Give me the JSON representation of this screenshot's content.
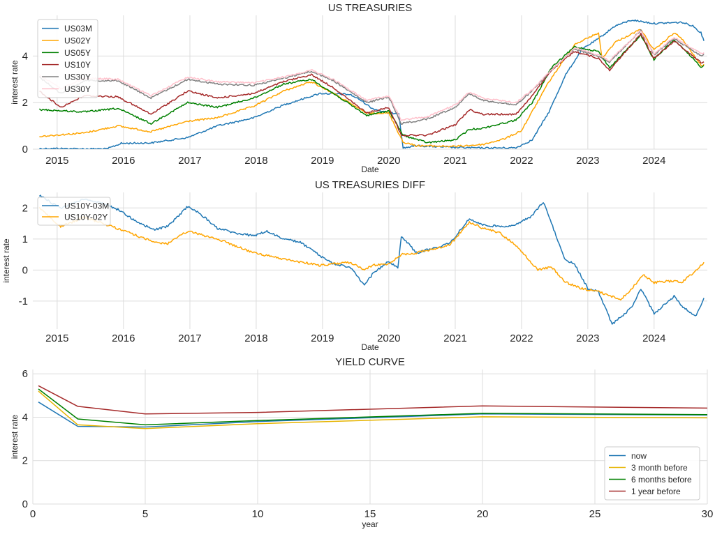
{
  "figure": {
    "background": "#ffffff"
  },
  "chart_data": [
    {
      "type": "line",
      "title": "US TREASURIES",
      "xlabel": "Date",
      "ylabel": "interest rate",
      "xlim": [
        "2014-08-20",
        "2024-10-20"
      ],
      "ylim": [
        0,
        5.75
      ],
      "xticks": [
        "2015",
        "2016",
        "2017",
        "2018",
        "2019",
        "2020",
        "2021",
        "2022",
        "2023",
        "2024"
      ],
      "yticks": [
        0,
        2,
        4
      ],
      "grid": true,
      "legend": "top-left",
      "series": [
        {
          "name": "US03M",
          "color": "#1f77b4",
          "x": [
            "2014-09-25",
            "2015-01-01",
            "2015-06-01",
            "2015-10-01",
            "2015-12-20",
            "2016-06-01",
            "2016-12-20",
            "2017-06-01",
            "2017-12-20",
            "2018-06-01",
            "2018-12-20",
            "2019-06-01",
            "2019-08-01",
            "2019-10-01",
            "2020-01-01",
            "2020-02-25",
            "2020-03-20",
            "2020-06-01",
            "2020-12-01",
            "2021-06-01",
            "2021-12-01",
            "2022-03-01",
            "2022-06-01",
            "2022-09-01",
            "2022-12-01",
            "2023-03-01",
            "2023-06-01",
            "2023-09-01",
            "2024-01-01",
            "2024-06-01",
            "2024-08-01",
            "2024-09-15",
            "2024-10-01"
          ],
          "y": [
            0.02,
            0.03,
            0.01,
            0.01,
            0.25,
            0.27,
            0.5,
            1.0,
            1.35,
            1.9,
            2.4,
            2.35,
            2.1,
            1.75,
            1.55,
            1.55,
            0.05,
            0.15,
            0.08,
            0.05,
            0.06,
            0.4,
            1.6,
            3.2,
            4.3,
            4.75,
            5.3,
            5.55,
            5.4,
            5.45,
            5.3,
            5.0,
            4.65
          ]
        },
        {
          "name": "US02Y",
          "color": "#ffa500",
          "x": [
            "2014-09-25",
            "2015-06-01",
            "2015-12-01",
            "2016-06-01",
            "2016-12-20",
            "2017-06-01",
            "2017-12-20",
            "2018-06-01",
            "2018-11-01",
            "2019-03-01",
            "2019-09-01",
            "2020-01-01",
            "2020-03-20",
            "2020-06-01",
            "2021-01-01",
            "2021-06-01",
            "2021-10-01",
            "2022-01-01",
            "2022-06-01",
            "2022-10-20",
            "2023-03-01",
            "2023-03-20",
            "2023-06-01",
            "2023-10-20",
            "2023-12-31",
            "2024-04-20",
            "2024-06-01",
            "2024-09-20",
            "2024-10-01"
          ],
          "y": [
            0.55,
            0.7,
            1.0,
            0.75,
            1.2,
            1.35,
            1.85,
            2.5,
            2.9,
            2.4,
            1.55,
            1.55,
            0.3,
            0.15,
            0.12,
            0.2,
            0.45,
            0.8,
            2.9,
            4.5,
            5.0,
            3.9,
            4.6,
            5.15,
            4.25,
            5.0,
            4.75,
            3.55,
            3.65
          ]
        },
        {
          "name": "US05Y",
          "color": "#008000",
          "x": [
            "2014-09-25",
            "2015-06-01",
            "2015-12-01",
            "2016-06-01",
            "2016-12-20",
            "2017-06-01",
            "2017-12-20",
            "2018-06-01",
            "2018-11-01",
            "2019-03-01",
            "2019-09-01",
            "2020-01-01",
            "2020-03-20",
            "2020-08-01",
            "2021-01-01",
            "2021-03-20",
            "2021-06-01",
            "2021-12-01",
            "2022-03-01",
            "2022-06-15",
            "2022-10-20",
            "2023-03-01",
            "2023-05-01",
            "2023-10-20",
            "2023-12-31",
            "2024-04-20",
            "2024-09-20",
            "2024-10-01"
          ],
          "y": [
            1.7,
            1.6,
            1.75,
            1.1,
            2.0,
            1.8,
            2.2,
            2.8,
            3.0,
            2.4,
            1.45,
            1.65,
            0.6,
            0.28,
            0.4,
            0.85,
            0.9,
            1.25,
            2.0,
            3.5,
            4.4,
            4.2,
            3.5,
            4.9,
            3.85,
            4.7,
            3.5,
            3.6
          ]
        },
        {
          "name": "US10Y",
          "color": "#a52a2a",
          "x": [
            "2014-09-25",
            "2015-01-20",
            "2015-06-01",
            "2015-12-01",
            "2016-06-01",
            "2016-12-20",
            "2017-06-01",
            "2017-12-20",
            "2018-06-01",
            "2018-11-01",
            "2019-03-01",
            "2019-09-01",
            "2020-01-01",
            "2020-03-10",
            "2020-08-01",
            "2021-01-01",
            "2021-03-20",
            "2021-06-01",
            "2021-12-01",
            "2022-03-01",
            "2022-06-15",
            "2022-10-20",
            "2023-03-01",
            "2023-05-01",
            "2023-10-20",
            "2023-12-31",
            "2024-04-20",
            "2024-09-20",
            "2024-10-01"
          ],
          "y": [
            2.5,
            1.8,
            2.3,
            2.25,
            1.5,
            2.5,
            2.2,
            2.4,
            2.9,
            3.2,
            2.65,
            1.55,
            1.8,
            0.6,
            0.6,
            1.05,
            1.7,
            1.5,
            1.5,
            2.3,
            3.4,
            4.2,
            3.9,
            3.4,
            4.95,
            3.9,
            4.65,
            3.7,
            3.75
          ]
        },
        {
          "name": "US30Y",
          "color": "#808080",
          "x": [
            "2014-09-25",
            "2015-01-20",
            "2015-06-01",
            "2015-12-01",
            "2016-06-01",
            "2016-12-20",
            "2017-06-01",
            "2017-12-20",
            "2018-06-01",
            "2018-11-01",
            "2019-03-01",
            "2019-09-01",
            "2020-01-01",
            "2020-03-10",
            "2020-08-01",
            "2021-01-01",
            "2021-03-20",
            "2021-06-01",
            "2021-12-01",
            "2022-03-01",
            "2022-06-15",
            "2022-10-20",
            "2023-03-01",
            "2023-05-01",
            "2023-10-20",
            "2023-12-31",
            "2024-04-20",
            "2024-09-20",
            "2024-10-01"
          ],
          "y": [
            3.1,
            2.4,
            2.95,
            2.95,
            2.2,
            3.0,
            2.8,
            2.75,
            3.05,
            3.35,
            2.95,
            2.0,
            2.25,
            1.1,
            1.3,
            1.8,
            2.4,
            2.1,
            1.9,
            2.5,
            3.4,
            4.3,
            4.0,
            3.75,
            5.1,
            4.05,
            4.75,
            4.0,
            4.1
          ]
        },
        {
          "name": "US30Y",
          "color": "#ffc0cb",
          "x": [
            "2014-09-25",
            "2015-01-20",
            "2015-06-01",
            "2015-12-01",
            "2016-06-01",
            "2016-12-20",
            "2017-06-01",
            "2017-12-20",
            "2018-06-01",
            "2018-11-01",
            "2019-03-01",
            "2019-09-01",
            "2020-01-01",
            "2020-03-10",
            "2020-08-01",
            "2021-01-01",
            "2021-03-20",
            "2021-06-01",
            "2021-12-01",
            "2022-03-01",
            "2022-06-15",
            "2022-10-20",
            "2023-03-01",
            "2023-05-01",
            "2023-10-20",
            "2023-12-31",
            "2024-04-20",
            "2024-09-20",
            "2024-10-01"
          ],
          "y": [
            3.2,
            2.6,
            3.05,
            3.0,
            2.3,
            3.1,
            2.9,
            2.85,
            3.1,
            3.4,
            3.0,
            2.1,
            2.3,
            1.25,
            1.4,
            1.9,
            2.45,
            2.2,
            2.0,
            2.55,
            3.4,
            4.35,
            4.05,
            3.8,
            5.1,
            4.1,
            4.8,
            4.1,
            4.15
          ]
        }
      ]
    },
    {
      "type": "line",
      "title": "US TREASURIES DIFF",
      "xlabel": "Date",
      "ylabel": "interest rate",
      "xlim": [
        "2014-08-20",
        "2024-10-20"
      ],
      "ylim": [
        -1.9,
        2.5
      ],
      "xticks": [
        "2015",
        "2016",
        "2017",
        "2018",
        "2019",
        "2020",
        "2021",
        "2022",
        "2023",
        "2024"
      ],
      "yticks": [
        -1,
        0,
        1,
        2
      ],
      "grid": true,
      "legend": "top-left",
      "series": [
        {
          "name": "US10Y-03M",
          "color": "#1f77b4",
          "x": [
            "2014-09-25",
            "2015-01-20",
            "2015-06-01",
            "2015-10-01",
            "2015-12-20",
            "2016-03-01",
            "2016-06-15",
            "2016-09-01",
            "2016-12-20",
            "2017-03-01",
            "2017-06-01",
            "2017-09-01",
            "2017-12-20",
            "2018-03-01",
            "2018-06-01",
            "2018-09-01",
            "2018-12-20",
            "2019-03-01",
            "2019-06-01",
            "2019-08-20",
            "2019-10-01",
            "2020-01-01",
            "2020-02-20",
            "2020-03-10",
            "2020-06-01",
            "2020-12-01",
            "2021-03-20",
            "2021-06-01",
            "2021-09-01",
            "2021-12-01",
            "2022-03-01",
            "2022-05-01",
            "2022-06-15",
            "2022-09-01",
            "2022-10-20",
            "2023-01-01",
            "2023-03-01",
            "2023-05-15",
            "2023-09-01",
            "2023-10-20",
            "2024-01-01",
            "2024-04-20",
            "2024-06-01",
            "2024-08-15",
            "2024-10-01"
          ],
          "y": [
            2.4,
            2.0,
            2.3,
            2.1,
            1.9,
            1.6,
            1.3,
            1.4,
            2.05,
            1.8,
            1.35,
            1.2,
            1.1,
            1.25,
            1.0,
            0.9,
            0.45,
            0.2,
            0.1,
            -0.5,
            -0.15,
            0.3,
            0.05,
            1.1,
            0.55,
            0.85,
            1.65,
            1.45,
            1.4,
            1.45,
            1.75,
            2.2,
            1.5,
            0.3,
            0.2,
            -0.6,
            -0.7,
            -1.75,
            -1.2,
            -0.6,
            -1.4,
            -0.85,
            -1.15,
            -1.5,
            -0.9
          ]
        },
        {
          "name": "US10Y-02Y",
          "color": "#ffa500",
          "x": [
            "2014-09-25",
            "2015-01-20",
            "2015-06-01",
            "2015-12-20",
            "2016-06-15",
            "2016-09-01",
            "2016-12-20",
            "2017-06-01",
            "2017-12-20",
            "2018-06-01",
            "2018-12-20",
            "2019-03-01",
            "2019-06-01",
            "2019-08-20",
            "2019-10-01",
            "2020-01-01",
            "2020-03-10",
            "2020-06-01",
            "2020-12-01",
            "2021-03-20",
            "2021-06-01",
            "2021-09-01",
            "2021-12-01",
            "2022-03-01",
            "2022-04-01",
            "2022-06-15",
            "2022-09-01",
            "2022-12-01",
            "2023-03-01",
            "2023-07-01",
            "2023-09-01",
            "2023-11-01",
            "2024-01-01",
            "2024-04-20",
            "2024-06-01",
            "2024-08-01",
            "2024-10-01"
          ],
          "y": [
            2.0,
            1.4,
            1.7,
            1.3,
            0.9,
            0.85,
            1.25,
            1.0,
            0.55,
            0.35,
            0.15,
            0.2,
            0.25,
            0.0,
            0.15,
            0.2,
            0.5,
            0.55,
            0.8,
            1.55,
            1.35,
            1.2,
            0.8,
            0.2,
            0.0,
            0.1,
            -0.4,
            -0.6,
            -0.7,
            -0.95,
            -0.6,
            -0.15,
            -0.4,
            -0.35,
            -0.4,
            -0.1,
            0.25
          ]
        }
      ]
    },
    {
      "type": "line",
      "title": "YIELD CURVE",
      "xlabel": "year",
      "ylabel": "interest rate",
      "xlim": [
        0,
        30
      ],
      "ylim": [
        0,
        6.2
      ],
      "xticks": [
        0,
        5,
        10,
        15,
        20,
        25,
        30
      ],
      "yticks": [
        0,
        2,
        4,
        6
      ],
      "grid": true,
      "legend": "lower-right",
      "series": [
        {
          "name": "now",
          "color": "#1f77b4",
          "x": [
            0.25,
            2,
            5,
            10,
            20,
            30
          ],
          "y": [
            4.7,
            3.58,
            3.55,
            3.8,
            4.15,
            4.1
          ]
        },
        {
          "name": "3 month before",
          "color": "#e6b400",
          "x": [
            0.25,
            2,
            5,
            10,
            20,
            30
          ],
          "y": [
            5.2,
            3.65,
            3.48,
            3.7,
            4.02,
            3.97
          ]
        },
        {
          "name": "6 months before",
          "color": "#008000",
          "x": [
            0.25,
            2,
            5,
            10,
            20,
            30
          ],
          "y": [
            5.3,
            3.92,
            3.65,
            3.85,
            4.18,
            4.12
          ]
        },
        {
          "name": "1 year before",
          "color": "#a52a2a",
          "x": [
            0.25,
            2,
            5,
            10,
            20,
            30
          ],
          "y": [
            5.45,
            4.5,
            4.15,
            4.22,
            4.52,
            4.42
          ]
        }
      ]
    }
  ]
}
